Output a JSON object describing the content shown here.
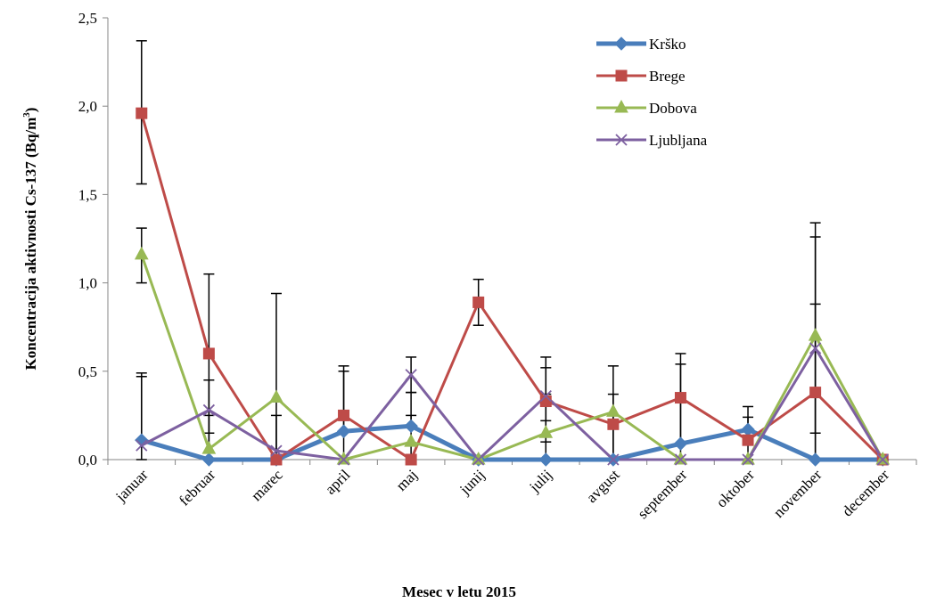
{
  "chart_data": {
    "type": "line",
    "xlabel": "Mesec v letu 2015",
    "ylabel": "Koncentracija aktivnosti Cs-137 (Bq/m",
    "ylabel_sup": "3",
    "ylabel_end": ")",
    "ylim": [
      0,
      2.5
    ],
    "yticks": [
      "0,0",
      "0,5",
      "1,0",
      "1,5",
      "2,0",
      "2,5"
    ],
    "ytick_values": [
      0,
      0.5,
      1.0,
      1.5,
      2.0,
      2.5
    ],
    "categories": [
      "januar",
      "februar",
      "marec",
      "april",
      "maj",
      "junij",
      "julij",
      "avgust",
      "september",
      "oktober",
      "november",
      "december"
    ],
    "legend_position": "top-right",
    "grid": false,
    "series": [
      {
        "name": "Krško",
        "color": "#4a7ebb",
        "marker": "diamond",
        "values": [
          0.11,
          0.0,
          0.0,
          0.16,
          0.19,
          0.0,
          0.0,
          0.0,
          0.09,
          0.17,
          0.0,
          0.0
        ],
        "err_lo": [
          0.11,
          0.0,
          0.0,
          0.16,
          0.19,
          0.0,
          0.0,
          0.0,
          0.09,
          0.17,
          0.0,
          0.0
        ],
        "err_hi": [
          0.47,
          0.0,
          0.0,
          0.53,
          0.38,
          0.0,
          0.0,
          0.0,
          0.54,
          0.3,
          0.0,
          0.0
        ]
      },
      {
        "name": "Brege",
        "color": "#be4b48",
        "marker": "square",
        "values": [
          1.96,
          0.6,
          0.0,
          0.25,
          0.0,
          0.89,
          0.33,
          0.2,
          0.35,
          0.11,
          0.38,
          0.0
        ],
        "err_lo": [
          1.56,
          0.15,
          0.0,
          0.0,
          0.0,
          0.76,
          0.1,
          0.0,
          0.0,
          0.0,
          0.15,
          0.0
        ],
        "err_hi": [
          2.37,
          1.05,
          0.0,
          0.5,
          0.0,
          1.02,
          0.58,
          0.53,
          0.6,
          0.24,
          0.88,
          0.0
        ]
      },
      {
        "name": "Dobova",
        "color": "#98b954",
        "marker": "triangle",
        "values": [
          1.16,
          0.06,
          0.35,
          0.0,
          0.1,
          0.0,
          0.15,
          0.27,
          0.0,
          0.0,
          0.7,
          0.0
        ],
        "err_lo": [
          1.0,
          0.0,
          0.0,
          0.0,
          0.0,
          0.0,
          0.0,
          0.0,
          0.0,
          0.0,
          0.0,
          0.0
        ],
        "err_hi": [
          1.31,
          0.25,
          0.94,
          0.0,
          0.25,
          0.0,
          0.37,
          0.37,
          0.0,
          0.0,
          1.34,
          0.0
        ]
      },
      {
        "name": "Ljubljana",
        "color": "#7d60a0",
        "marker": "x",
        "values": [
          0.08,
          0.28,
          0.05,
          0.0,
          0.48,
          0.0,
          0.36,
          0.0,
          0.0,
          0.0,
          0.63,
          0.0
        ],
        "err_lo": [
          0.0,
          0.0,
          0.0,
          0.0,
          0.38,
          0.0,
          0.22,
          0.0,
          0.0,
          0.0,
          0.0,
          0.0
        ],
        "err_hi": [
          0.49,
          0.45,
          0.25,
          0.0,
          0.58,
          0.0,
          0.52,
          0.0,
          0.0,
          0.0,
          1.26,
          0.0
        ]
      }
    ]
  }
}
